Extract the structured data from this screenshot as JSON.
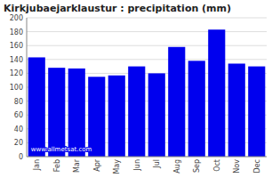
{
  "chart_data": {
    "type": "bar",
    "title": "Kirkjubaejarklaustur : precipitation (mm)",
    "categories": [
      "Jan",
      "Feb",
      "Mar",
      "Apr",
      "May",
      "Jun",
      "Jul",
      "Aug",
      "Sep",
      "Oct",
      "Nov",
      "Dec"
    ],
    "values": [
      143,
      128,
      127,
      115,
      117,
      130,
      120,
      158,
      138,
      183,
      134,
      130
    ],
    "color": "#0000ee",
    "ylim": [
      0,
      200
    ],
    "yticks": [
      0,
      20,
      40,
      60,
      80,
      100,
      120,
      140,
      160,
      180,
      200
    ],
    "grid": true,
    "annotation": "www.allmetsat.com"
  }
}
